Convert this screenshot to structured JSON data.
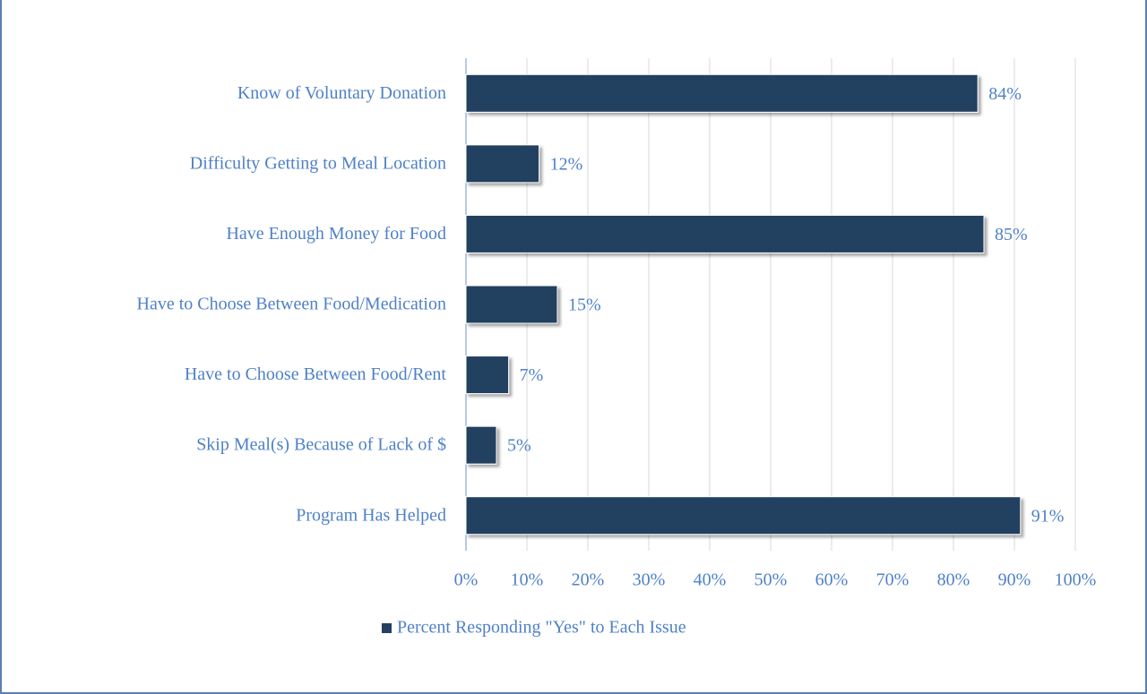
{
  "chart_data": {
    "type": "bar",
    "orientation": "horizontal",
    "categories": [
      "Know of Voluntary Donation",
      "Difficulty Getting to Meal Location",
      "Have Enough Money for Food",
      "Have to Choose Between Food/Medication",
      "Have to Choose Between Food/Rent",
      "Skip Meal(s) Because of Lack of $",
      "Program Has Helped"
    ],
    "series": [
      {
        "name": "Percent Responding \"Yes\" to Each Issue",
        "color": "#243f60",
        "values": [
          84,
          12,
          85,
          15,
          7,
          5,
          91
        ],
        "value_labels": [
          "84%",
          "12%",
          "85%",
          "15%",
          "7%",
          "5%",
          "91%"
        ]
      }
    ],
    "xlim": [
      0,
      100
    ],
    "xticks": [
      {
        "value": 0,
        "label": "0%"
      },
      {
        "value": 10,
        "label": "10%"
      },
      {
        "value": 20,
        "label": "20%"
      },
      {
        "value": 30,
        "label": "30%"
      },
      {
        "value": 40,
        "label": "40%"
      },
      {
        "value": 50,
        "label": "50%"
      },
      {
        "value": 60,
        "label": "60%"
      },
      {
        "value": 70,
        "label": "70%"
      },
      {
        "value": 80,
        "label": "80%"
      },
      {
        "value": 90,
        "label": "90%"
      },
      {
        "value": 100,
        "label": "100%"
      }
    ],
    "grid": true,
    "legend": "bottom"
  }
}
